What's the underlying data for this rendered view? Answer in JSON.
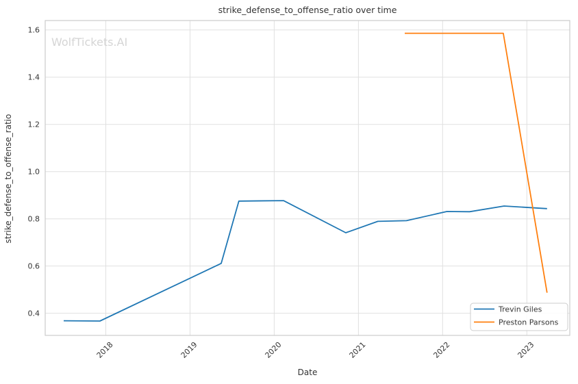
{
  "figure": {
    "title": "strike_defense_to_offense_ratio over time",
    "watermark": "WolfTickets.AI",
    "xlabel": "Date",
    "ylabel": "strike_defense_to_offense_ratio"
  },
  "chart_data": {
    "type": "line",
    "title": "strike_defense_to_offense_ratio over time",
    "xlabel": "Date",
    "ylabel": "strike_defense_to_offense_ratio",
    "watermark": "WolfTickets.AI",
    "x_unit": "decimal_year",
    "xlim": [
      2017.28,
      2023.51
    ],
    "ylim": [
      0.306,
      1.64
    ],
    "xticks": [
      2018,
      2019,
      2020,
      2021,
      2022,
      2023
    ],
    "xtick_labels": [
      "2018",
      "2019",
      "2020",
      "2021",
      "2022",
      "2023"
    ],
    "yticks": [
      0.4,
      0.6,
      0.8,
      1.0,
      1.2,
      1.4,
      1.6
    ],
    "ytick_labels": [
      "0.4",
      "0.6",
      "0.8",
      "1.0",
      "1.2",
      "1.4",
      "1.6"
    ],
    "grid": true,
    "legend_position": "lower right",
    "series": [
      {
        "name": "Trevin Giles",
        "color": "#1f77b4",
        "points": [
          [
            2017.5,
            0.368
          ],
          [
            2017.93,
            0.367
          ],
          [
            2019.37,
            0.611
          ],
          [
            2019.58,
            0.875
          ],
          [
            2020.11,
            0.877
          ],
          [
            2020.85,
            0.741
          ],
          [
            2021.23,
            0.789
          ],
          [
            2021.57,
            0.792
          ],
          [
            2022.05,
            0.831
          ],
          [
            2022.32,
            0.83
          ],
          [
            2022.73,
            0.854
          ],
          [
            2023.24,
            0.843
          ]
        ]
      },
      {
        "name": "Preston Parsons",
        "color": "#ff7f0e",
        "points": [
          [
            2021.55,
            1.586
          ],
          [
            2022.72,
            1.586
          ],
          [
            2023.24,
            0.487
          ]
        ]
      }
    ]
  },
  "legend": {
    "items": [
      {
        "label": "Trevin Giles",
        "color": "#1f77b4"
      },
      {
        "label": "Preston Parsons",
        "color": "#ff7f0e"
      }
    ]
  },
  "colors": {
    "background": "#ffffff",
    "grid": "#e0e0e0",
    "spine": "#cccccc",
    "text": "#333333",
    "watermark": "#d5d5d5",
    "series_blue": "#1f77b4",
    "series_orange": "#ff7f0e"
  }
}
